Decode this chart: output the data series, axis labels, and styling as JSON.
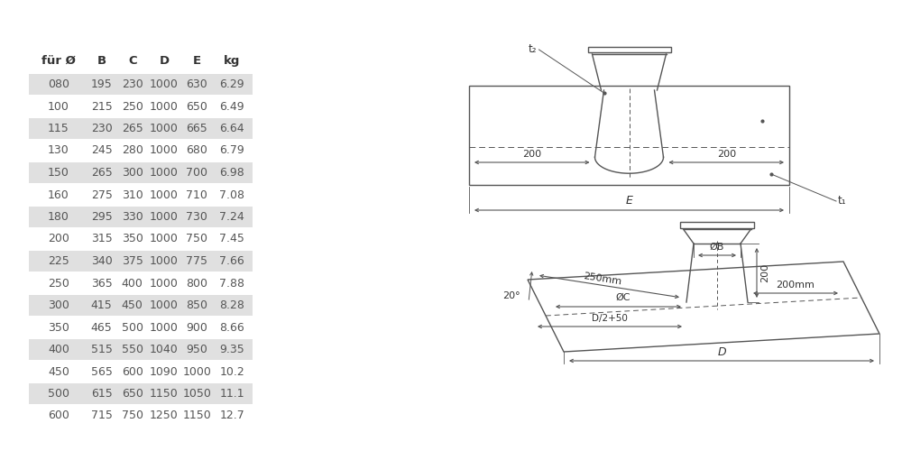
{
  "headers": [
    "für Ø",
    "B",
    "C",
    "D",
    "E",
    "kg"
  ],
  "rows": [
    [
      "080",
      "195",
      "230",
      "1000",
      "630",
      "6.29"
    ],
    [
      "100",
      "215",
      "250",
      "1000",
      "650",
      "6.49"
    ],
    [
      "115",
      "230",
      "265",
      "1000",
      "665",
      "6.64"
    ],
    [
      "130",
      "245",
      "280",
      "1000",
      "680",
      "6.79"
    ],
    [
      "150",
      "265",
      "300",
      "1000",
      "700",
      "6.98"
    ],
    [
      "160",
      "275",
      "310",
      "1000",
      "710",
      "7.08"
    ],
    [
      "180",
      "295",
      "330",
      "1000",
      "730",
      "7.24"
    ],
    [
      "200",
      "315",
      "350",
      "1000",
      "750",
      "7.45"
    ],
    [
      "225",
      "340",
      "375",
      "1000",
      "775",
      "7.66"
    ],
    [
      "250",
      "365",
      "400",
      "1000",
      "800",
      "7.88"
    ],
    [
      "300",
      "415",
      "450",
      "1000",
      "850",
      "8.28"
    ],
    [
      "350",
      "465",
      "500",
      "1000",
      "900",
      "8.66"
    ],
    [
      "400",
      "515",
      "550",
      "1040",
      "950",
      "9.35"
    ],
    [
      "450",
      "565",
      "600",
      "1090",
      "1000",
      "10.2"
    ],
    [
      "500",
      "615",
      "650",
      "1150",
      "1050",
      "11.1"
    ],
    [
      "600",
      "715",
      "750",
      "1250",
      "1150",
      "12.7"
    ]
  ],
  "shaded_rows": [
    0,
    2,
    4,
    6,
    8,
    10,
    12,
    14
  ],
  "row_bg_shaded": "#e0e0e0",
  "row_bg_plain": "#ffffff",
  "text_color": "#555555",
  "header_text_color": "#333333",
  "draw_color": "#555555",
  "background_color": "#ffffff"
}
